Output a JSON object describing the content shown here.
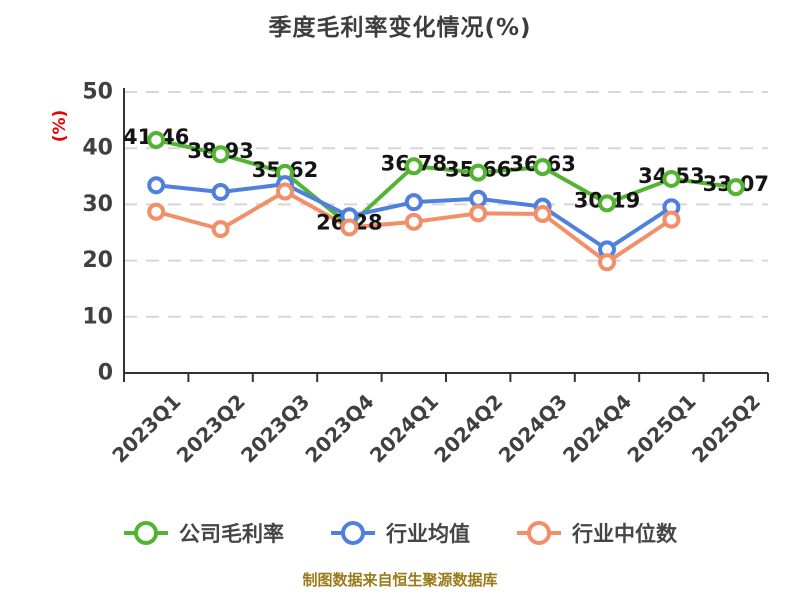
{
  "title": "季度毛利率变化情况(%)",
  "caption": "制图数据来自恒生聚源数据库",
  "colors": {
    "company_line": "#53b432",
    "industry_avg_line": "#5080dd",
    "industry_median_line": "#f28f68",
    "grid_line": "#d6d6d6",
    "axis_line": "#333333",
    "axis_text": "#404040",
    "data_label_text": "#141414",
    "y_axis_name_text": "#ec0000",
    "title_text": "#3d3d3d",
    "caption_text": "#9a7b18",
    "marker_fill": "#ffffff"
  },
  "chart_data": {
    "type": "line",
    "title": "季度毛利率变化情况(%)",
    "xlabel": "",
    "ylabel": "(%)",
    "categories": [
      "2023Q1",
      "2023Q2",
      "2023Q3",
      "2023Q4",
      "2024Q1",
      "2024Q2",
      "2024Q3",
      "2024Q4",
      "2025Q1",
      "2025Q2"
    ],
    "ylim": [
      0,
      50
    ],
    "yticks": [
      0,
      10,
      20,
      30,
      40,
      50
    ],
    "grid": "horizontal-dashed",
    "legend_position": "bottom",
    "series": [
      {
        "name": "公司毛利率",
        "color": "#53b432",
        "data_labels": true,
        "values": [
          41.46,
          38.93,
          35.62,
          26.28,
          36.78,
          35.66,
          36.63,
          30.19,
          34.53,
          33.07
        ]
      },
      {
        "name": "行业均值",
        "color": "#5080dd",
        "data_labels": false,
        "values": [
          33.4,
          32.2,
          33.6,
          27.9,
          30.4,
          31.0,
          29.6,
          22.0,
          29.5,
          null
        ]
      },
      {
        "name": "行业中位数",
        "color": "#f28f68",
        "data_labels": false,
        "values": [
          28.7,
          25.6,
          32.3,
          25.9,
          26.9,
          28.4,
          28.3,
          19.7,
          27.3,
          null
        ]
      }
    ]
  }
}
